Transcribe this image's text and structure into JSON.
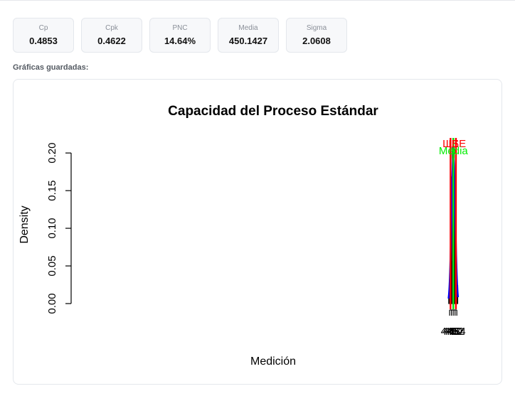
{
  "metrics": [
    {
      "label": "Cp",
      "value": "0.4853"
    },
    {
      "label": "Cpk",
      "value": "0.4622"
    },
    {
      "label": "PNC",
      "value": "14.64%"
    },
    {
      "label": "Media",
      "value": "450.1427"
    },
    {
      "label": "Sigma",
      "value": "2.0608"
    }
  ],
  "section_title": "Gráficas guardadas:",
  "chart_data": {
    "type": "bar",
    "title": "Capacidad del Proceso Estándar",
    "xlabel": "Medición",
    "ylabel": "Density",
    "xlim": [
      44.8,
      455.4
    ],
    "ylim": [
      0,
      0.22
    ],
    "x_ticks": [
      446,
      448,
      450,
      452,
      454
    ],
    "x_tick_labels": [
      "446",
      "448",
      "450",
      "452",
      "454"
    ],
    "y_ticks": [
      0,
      0.05,
      0.1,
      0.15,
      0.2
    ],
    "y_tick_labels": [
      "0.00",
      "0.05",
      "0.10",
      "0.15",
      "0.20"
    ],
    "bins": [
      {
        "start": 445,
        "end": 446,
        "density": 0.008
      },
      {
        "start": 446,
        "end": 447,
        "density": 0.04
      },
      {
        "start": 447,
        "end": 448,
        "density": 0.056
      },
      {
        "start": 448,
        "end": 449,
        "density": 0.168
      },
      {
        "start": 449,
        "end": 450,
        "density": 0.208
      },
      {
        "start": 450,
        "end": 451,
        "density": 0.208
      },
      {
        "start": 451,
        "end": 452,
        "density": 0.144
      },
      {
        "start": 452,
        "end": 453,
        "density": 0.096
      },
      {
        "start": 453,
        "end": 454,
        "density": 0.048
      },
      {
        "start": 454,
        "end": 455,
        "density": 0.024
      }
    ],
    "normal_curve": {
      "mean": 450.1427,
      "sd": 2.0608,
      "from": 444.8,
      "to": 455.3,
      "color": "#0000ee"
    },
    "reference_lines": [
      {
        "label": "LIE",
        "x": 447,
        "color": "#ff0000"
      },
      {
        "label": "LSE",
        "x": 453,
        "color": "#ff0000"
      },
      {
        "label": "Media",
        "x": 450.1427,
        "color": "#00ee00"
      },
      {
        "label": "",
        "x": 450,
        "color": "#a020f0"
      }
    ]
  }
}
